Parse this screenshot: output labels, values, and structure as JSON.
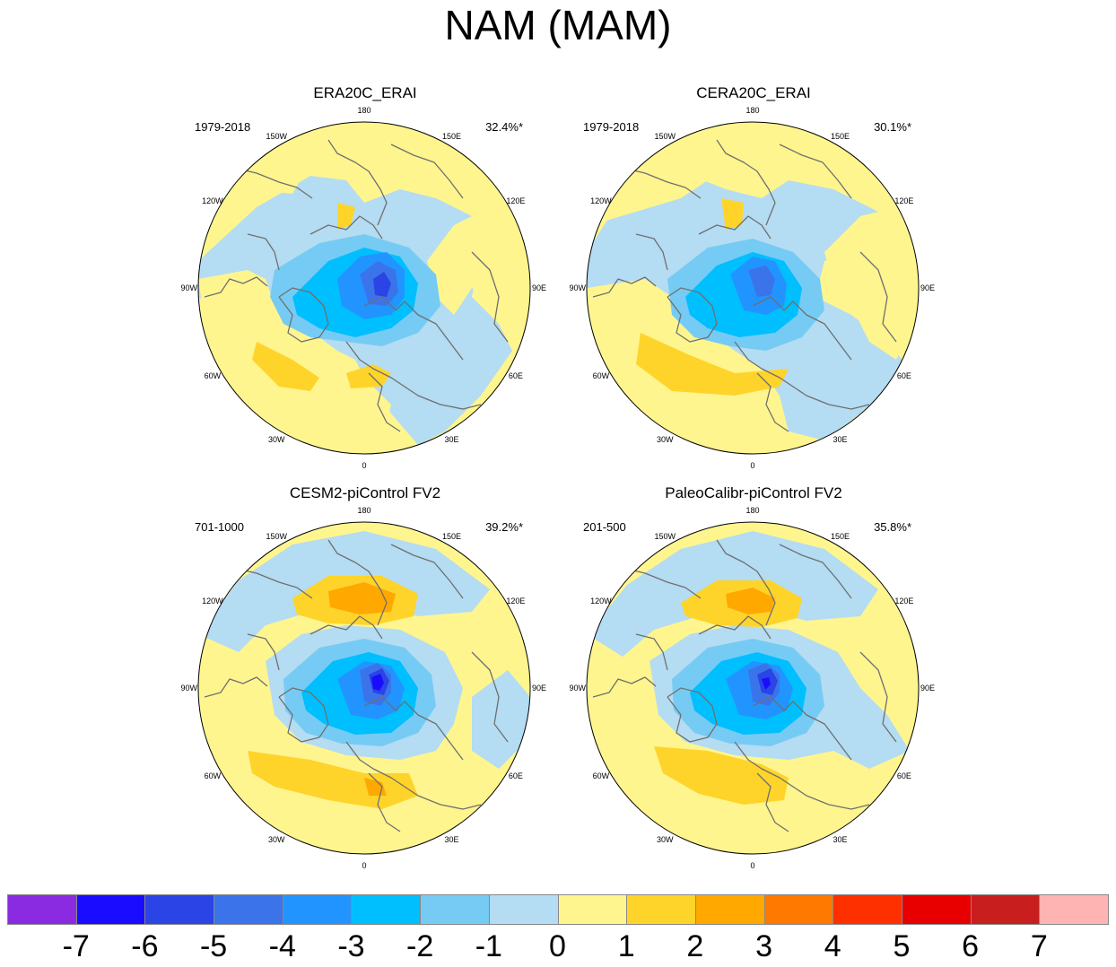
{
  "title": "NAM (MAM)",
  "panels": [
    {
      "title": "ERA20C_ERAI",
      "period": "1979-2018",
      "variance": "32.4%*"
    },
    {
      "title": "CERA20C_ERAI",
      "period": "1979-2018",
      "variance": "30.1%*"
    },
    {
      "title": "CESM2-piControl FV2",
      "period": "701-1000",
      "variance": "39.2%*"
    },
    {
      "title": "PaleoCalibr-piControl FV2",
      "period": "201-500",
      "variance": "35.8%*"
    }
  ],
  "longitude_labels": [
    "180",
    "150E",
    "120E",
    "90E",
    "60E",
    "30E",
    "0",
    "30W",
    "60W",
    "90W",
    "120W",
    "150W"
  ],
  "colorbar": {
    "labels": [
      "-7",
      "-6",
      "-5",
      "-4",
      "-3",
      "-2",
      "-1",
      "0",
      "1",
      "2",
      "3",
      "4",
      "5",
      "6",
      "7"
    ],
    "colors": [
      "#8a2be2",
      "#1a0dff",
      "#2a44e6",
      "#3b74ea",
      "#2294ff",
      "#00bfff",
      "#76cbf4",
      "#b4dcf2",
      "#fff58f",
      "#ffd42a",
      "#ffa800",
      "#ff7800",
      "#ff3000",
      "#e80000",
      "#c81e1e",
      "#ffb4b4"
    ]
  }
}
